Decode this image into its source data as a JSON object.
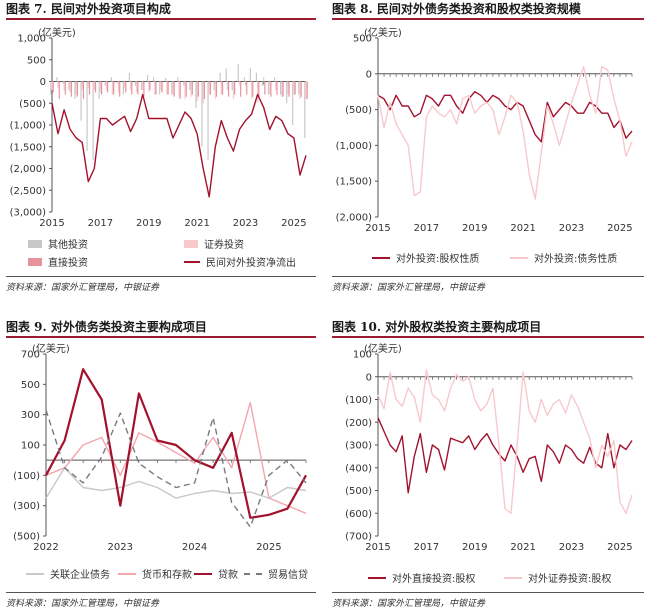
{
  "colors": {
    "accent": "#9b1b30",
    "dark_red": "#a3122d",
    "light_pink": "#f2a6ae",
    "pale_pink": "#f7c9cd",
    "grey": "#c8c8c8",
    "dark_grey": "#7a7a7a"
  },
  "panels": [
    {
      "title": "图表 7. 民间对外投资项目构成",
      "source": "资料来源：国家外汇管理局，中银证券",
      "chart_data": {
        "type": "bar+line",
        "unit": "(亿美元)",
        "ylim": [
          -3000,
          1000
        ],
        "yticks": [
          1000,
          500,
          0,
          -500,
          -1000,
          -1500,
          -2000,
          -2500,
          -3000
        ],
        "ytick_labels": [
          "1,000",
          "500",
          "0",
          "(500)",
          "(1,000)",
          "(1,500)",
          "(2,000)",
          "(2,500)",
          "(3,000)"
        ],
        "x_start": 2015.0,
        "x_end": 2025.5,
        "xticks": [
          2015,
          2017,
          2019,
          2021,
          2023,
          2025
        ],
        "xtick_labels": [
          "2015",
          "2017",
          "2019",
          "2021",
          "2023",
          "2025"
        ],
        "quarters_start": 2015.0,
        "series": [
          {
            "name": "其他投资",
            "kind": "bar",
            "color": "#c8c8c8",
            "values": [
              -300,
              100,
              -50,
              -200,
              -400,
              -900,
              -1600,
              -1800,
              -400,
              -100,
              100,
              -50,
              -300,
              200,
              -100,
              -200,
              150,
              100,
              -300,
              80,
              -300,
              100,
              -100,
              -200,
              -600,
              -1500,
              -1800,
              -200,
              200,
              300,
              -200,
              400,
              100,
              300,
              200,
              -100,
              -300,
              100,
              -300,
              -500,
              -1000,
              -300,
              -1300
            ]
          },
          {
            "name": "证券投资",
            "kind": "bar",
            "color": "#f7c9cd",
            "values": [
              -200,
              -150,
              -200,
              -250,
              -300,
              -200,
              -150,
              -200,
              -250,
              -200,
              -300,
              -250,
              -150,
              -200,
              -250,
              -200,
              -250,
              -300,
              -200,
              -300,
              -300,
              -350,
              -400,
              -350,
              -450,
              -500,
              -300,
              -400,
              -300,
              -200,
              -400,
              -100,
              -50,
              -400,
              -500,
              100,
              -300,
              -200,
              -350,
              -300,
              -300,
              -400,
              -400
            ]
          },
          {
            "name": "直接投资",
            "kind": "bar",
            "color": "#e8939b",
            "values": [
              -250,
              -400,
              -300,
              -350,
              -350,
              -400,
              -300,
              -250,
              -300,
              -250,
              -300,
              -350,
              -250,
              -300,
              -300,
              -350,
              -200,
              -300,
              -250,
              -300,
              -350,
              -400,
              -350,
              -300,
              -350,
              -400,
              -300,
              -350,
              -300,
              -350,
              -300,
              -350,
              -300,
              -350,
              -350,
              -300,
              -350,
              -300,
              -350,
              -350,
              -300,
              -350,
              -400
            ]
          },
          {
            "name": "民间对外投资净流出",
            "kind": "line",
            "color": "#a3122d",
            "values": [
              -500,
              -1200,
              -650,
              -1100,
              -1300,
              -1400,
              -2300,
              -2000,
              -850,
              -850,
              -1000,
              -900,
              -800,
              -1150,
              -850,
              -300,
              -850,
              -850,
              -850,
              -850,
              -1300,
              -1000,
              -700,
              -850,
              -1200,
              -2000,
              -2650,
              -1500,
              -900,
              -1300,
              -1600,
              -1100,
              -900,
              -750,
              -300,
              -600,
              -1100,
              -800,
              -900,
              -1200,
              -1300,
              -2150,
              -1700
            ]
          }
        ]
      }
    },
    {
      "title": "图表 8. 民间对外债务类投资和股权类投资规模",
      "source": "资料来源：国家外汇管理局，中银证券",
      "chart_data": {
        "type": "line",
        "unit": "(亿美元)",
        "ylim": [
          -2000,
          500
        ],
        "yticks": [
          500,
          0,
          -500,
          -1000,
          -1500,
          -2000
        ],
        "ytick_labels": [
          "500",
          "0",
          "(500)",
          "(1,000)",
          "(1,500)",
          "(2,000)"
        ],
        "x_start": 2015.0,
        "x_end": 2025.5,
        "xticks": [
          2015,
          2017,
          2019,
          2021,
          2023,
          2025
        ],
        "xtick_labels": [
          "2015",
          "2017",
          "2019",
          "2021",
          "2023",
          "2025"
        ],
        "quarters_start": 2015.0,
        "series": [
          {
            "name": "对外投资:股权性质",
            "color": "#a3122d",
            "values": [
              -300,
              -350,
              -500,
              -300,
              -450,
              -450,
              -600,
              -550,
              -300,
              -350,
              -450,
              -300,
              -300,
              -450,
              -550,
              -350,
              -250,
              -300,
              -400,
              -300,
              -350,
              -450,
              -500,
              -400,
              -450,
              -650,
              -850,
              -950,
              -400,
              -600,
              -500,
              -400,
              -450,
              -550,
              -550,
              -400,
              -450,
              -550,
              -550,
              -750,
              -650,
              -900,
              -800
            ]
          },
          {
            "name": "对外投资:债务性质",
            "color": "#f7c9cd",
            "values": [
              -300,
              -750,
              -400,
              -700,
              -850,
              -1000,
              -1700,
              -1650,
              -600,
              -450,
              -550,
              -600,
              -500,
              -700,
              -350,
              -300,
              -550,
              -450,
              -400,
              -500,
              -850,
              -600,
              -300,
              -400,
              -800,
              -1400,
              -1750,
              -1100,
              -450,
              -700,
              -1000,
              -700,
              -400,
              -150,
              100,
              -300,
              -550,
              100,
              50,
              -350,
              -650,
              -1150,
              -950
            ]
          }
        ]
      }
    },
    {
      "title": "图表 9. 对外债务类投资主要构成项目",
      "source": "资料来源：国家外汇管理局，中银证券",
      "chart_data": {
        "type": "line",
        "unit": "(亿美元)",
        "ylim": [
          -500,
          700
        ],
        "yticks": [
          700,
          500,
          300,
          100,
          -100,
          -300,
          -500
        ],
        "ytick_labels": [
          "700",
          "500",
          "300",
          "100",
          "(100)",
          "(300)",
          "(500)"
        ],
        "x_start": 2022.0,
        "x_end": 2025.5,
        "xticks": [
          2022,
          2023,
          2024,
          2025
        ],
        "xtick_labels": [
          "2022",
          "2023",
          "2024",
          "2025"
        ],
        "quarters_start": 2022.0,
        "series": [
          {
            "name": "关联企业债务",
            "color": "#c8c8c8",
            "dash": "",
            "values": [
              -250,
              -50,
              -180,
              -200,
              -180,
              -140,
              -180,
              -250,
              -220,
              -200,
              -220,
              -210,
              -250,
              -180,
              -200
            ]
          },
          {
            "name": "货币和存款",
            "color": "#f2a6ae",
            "dash": "",
            "values": [
              -100,
              -50,
              100,
              150,
              -100,
              180,
              120,
              50,
              -20,
              150,
              -50,
              380,
              -250,
              -300,
              -350
            ]
          },
          {
            "name": "贷款",
            "color": "#a3122d",
            "dash": "",
            "width": 2.2,
            "values": [
              -100,
              130,
              600,
              400,
              -300,
              440,
              130,
              100,
              0,
              -50,
              180,
              -380,
              -360,
              -320,
              -100
            ]
          },
          {
            "name": "贸易信贷",
            "color": "#7a7a7a",
            "dash": "6,4",
            "values": [
              330,
              -50,
              -150,
              20,
              310,
              -20,
              -110,
              -180,
              -150,
              280,
              -280,
              -440,
              -100,
              0,
              -150
            ]
          }
        ]
      }
    },
    {
      "title": "图表 10. 对外股权类投资主要构成项目",
      "source": "资料来源：国家外汇管理局，中银证券",
      "chart_data": {
        "type": "line",
        "unit": "(亿美元)",
        "ylim": [
          -700,
          100
        ],
        "yticks": [
          100,
          0,
          -100,
          -200,
          -300,
          -400,
          -500,
          -600,
          -700
        ],
        "ytick_labels": [
          "100",
          "0",
          "(100)",
          "(200)",
          "(300)",
          "(400)",
          "(500)",
          "(600)",
          "(700)"
        ],
        "x_start": 2015.0,
        "x_end": 2025.5,
        "xticks": [
          2015,
          2017,
          2019,
          2021,
          2023,
          2025
        ],
        "xtick_labels": [
          "2015",
          "2017",
          "2019",
          "2021",
          "2023",
          "2025"
        ],
        "quarters_start": 2015.0,
        "series": [
          {
            "name": "对外直接投资:股权",
            "color": "#a3122d",
            "values": [
              -180,
              -240,
              -300,
              -330,
              -260,
              -510,
              -350,
              -250,
              -420,
              -300,
              -320,
              -410,
              -270,
              -280,
              -290,
              -260,
              -320,
              -280,
              -250,
              -300,
              -340,
              -370,
              -300,
              -350,
              -420,
              -360,
              -350,
              -460,
              -300,
              -330,
              -380,
              -300,
              -320,
              -360,
              -380,
              -310,
              -380,
              -400,
              -250,
              -400,
              -300,
              -320,
              -280
            ]
          },
          {
            "name": "对外证券投资:股权",
            "color": "#f7c9cd",
            "values": [
              -80,
              -140,
              20,
              -100,
              -130,
              -50,
              -90,
              -200,
              30,
              -80,
              -100,
              -150,
              -50,
              10,
              -20,
              0,
              -100,
              -150,
              -120,
              -50,
              -300,
              -580,
              -600,
              -300,
              20,
              -150,
              -200,
              -100,
              -170,
              -120,
              -100,
              -160,
              -80,
              -130,
              -200,
              -270,
              -400,
              -300,
              -350,
              -280,
              -550,
              -600,
              -520
            ]
          }
        ]
      }
    }
  ]
}
